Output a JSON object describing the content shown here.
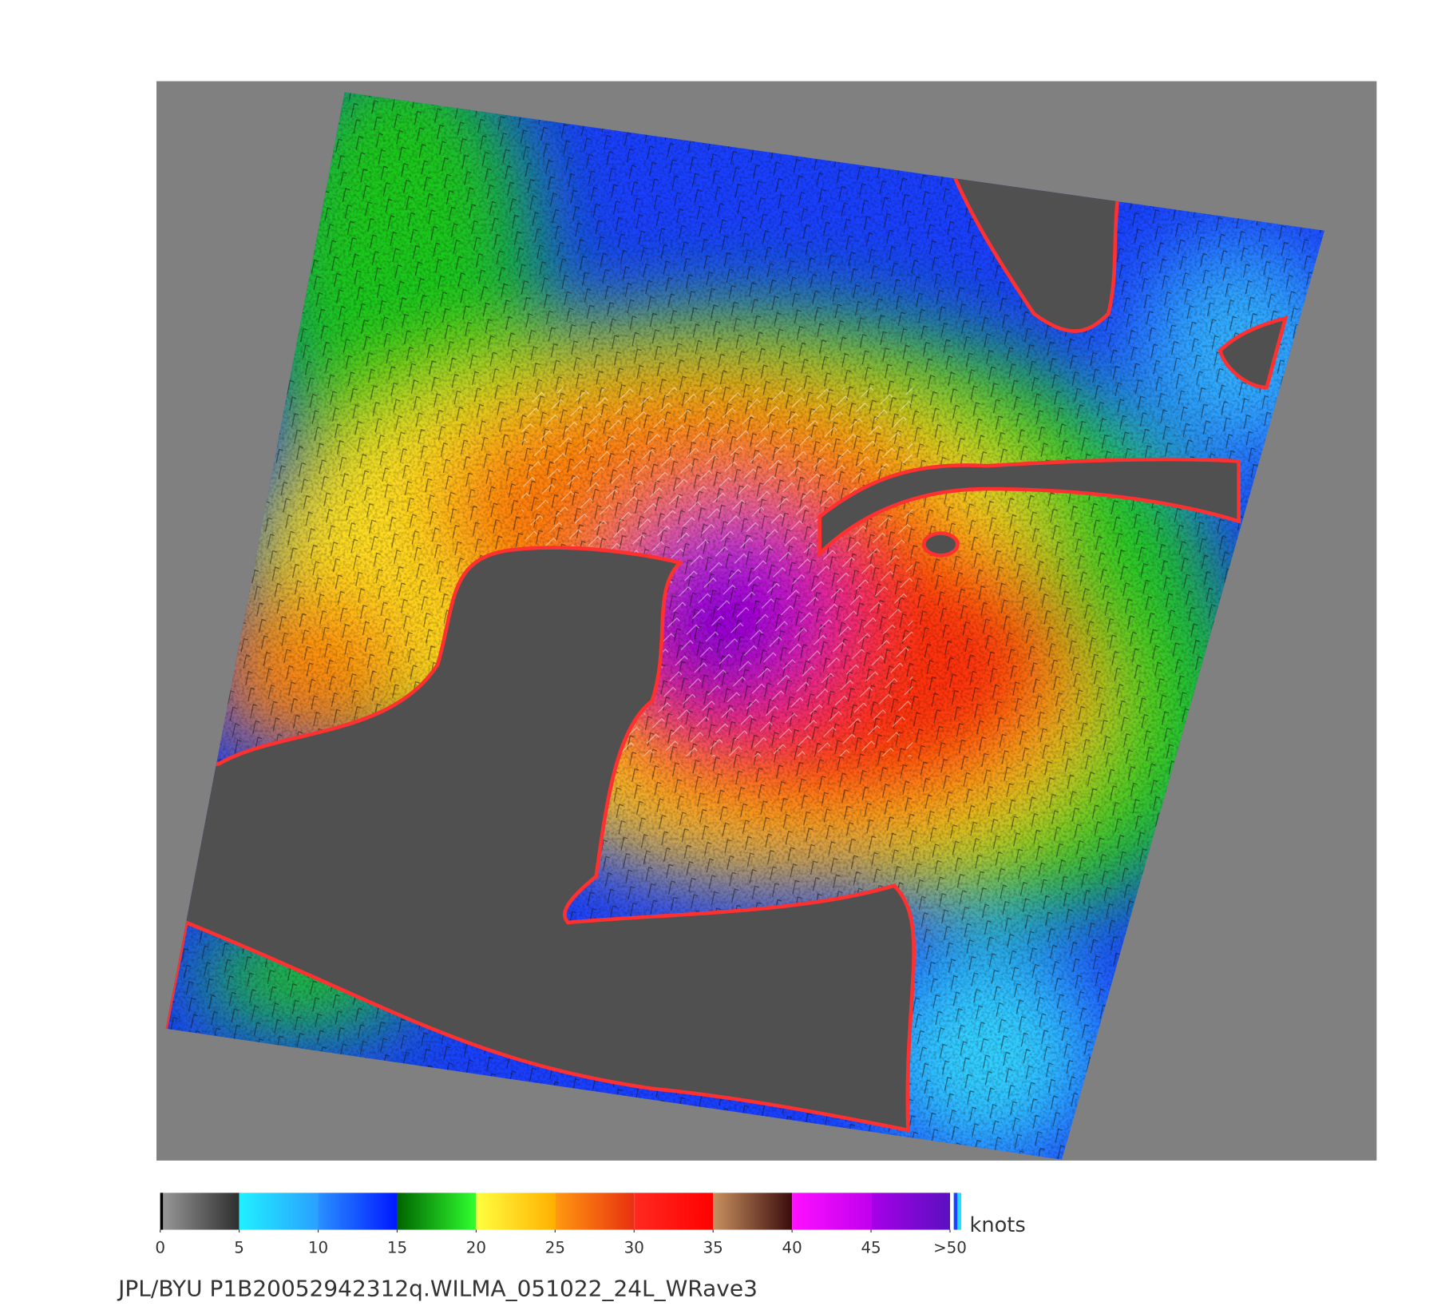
{
  "colorbar": {
    "ticks": [
      0,
      5,
      10,
      15,
      20,
      25,
      30,
      35,
      40,
      45,
      {
        "value": 50,
        "label": ">50"
      }
    ],
    "gradients": [
      [
        "#9a9a9a",
        "#2e2e2e"
      ],
      [
        "#20f0ff",
        "#2aa0ff"
      ],
      [
        "#2a90ff",
        "#0018ff"
      ],
      [
        "#006400",
        "#30ff30"
      ],
      [
        "#ffff40",
        "#ffb000"
      ],
      [
        "#ff9a10",
        "#e83010"
      ],
      [
        "#ff2a20",
        "#ff0000"
      ],
      [
        "#c89060",
        "#3a0c0c"
      ],
      [
        "#ff10ff",
        "#c000ee"
      ],
      [
        "#a800e8",
        "#5a10c0"
      ]
    ],
    "unit": "knots"
  },
  "footer": "JPL/BYU  P1B20052942312q.WILMA_051022_24L_WRave3"
}
